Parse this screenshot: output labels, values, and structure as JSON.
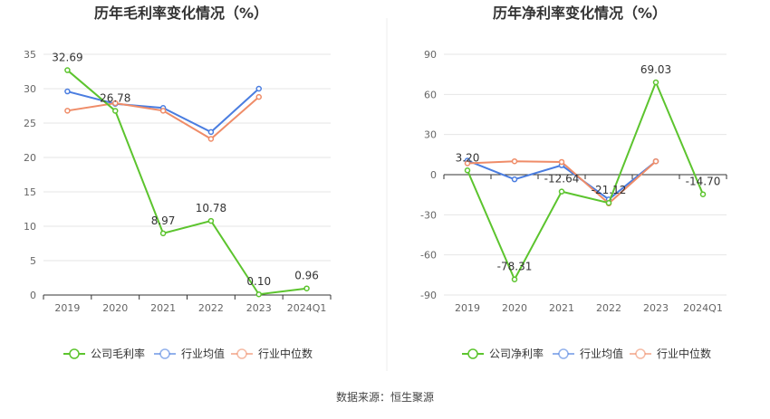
{
  "charts": [
    {
      "type": "line",
      "title": "历年毛利率变化情况（%）",
      "categories": [
        "2019",
        "2020",
        "2021",
        "2022",
        "2023",
        "2024Q1"
      ],
      "yticks": [
        0,
        5,
        10,
        15,
        20,
        25,
        30,
        35
      ],
      "ylim": [
        0,
        35
      ],
      "grid": true,
      "legend_position": "bottom",
      "series": [
        {
          "name": "公司毛利率",
          "color": "#5cc42e",
          "values": [
            32.69,
            26.78,
            8.97,
            10.78,
            0.1,
            0.96
          ],
          "labels": [
            "32.69",
            "26.78",
            "8.97",
            "10.78",
            "0.10",
            "0.96"
          ]
        },
        {
          "name": "行业均值",
          "color": "#4a7de0",
          "values": [
            29.6,
            27.8,
            27.2,
            23.7,
            30.0,
            null
          ]
        },
        {
          "name": "行业中位数",
          "color": "#ef8c68",
          "values": [
            26.8,
            27.9,
            26.8,
            22.7,
            28.8,
            null
          ]
        }
      ]
    },
    {
      "type": "line",
      "title": "历年净利率变化情况（%）",
      "categories": [
        "2019",
        "2020",
        "2021",
        "2022",
        "2023",
        "2024Q1"
      ],
      "yticks": [
        -90,
        -60,
        -30,
        0,
        30,
        60,
        90
      ],
      "ylim": [
        -90,
        90
      ],
      "grid": true,
      "legend_position": "bottom",
      "series": [
        {
          "name": "公司净利率",
          "color": "#5cc42e",
          "values": [
            3.2,
            -78.31,
            -12.64,
            -21.12,
            69.03,
            -14.7
          ],
          "labels": [
            "3.20",
            "-78.31",
            "-12.64",
            "-21.12",
            "69.03",
            "-14.70"
          ]
        },
        {
          "name": "行业均值",
          "color": "#4a7de0",
          "values": [
            10.5,
            -3.5,
            7.0,
            -18.5,
            10.0,
            null
          ]
        },
        {
          "name": "行业中位数",
          "color": "#ef8c68",
          "values": [
            8.5,
            10.0,
            9.5,
            -21.5,
            10.0,
            null
          ]
        }
      ]
    }
  ],
  "source_text": "数据来源：恒生聚源"
}
